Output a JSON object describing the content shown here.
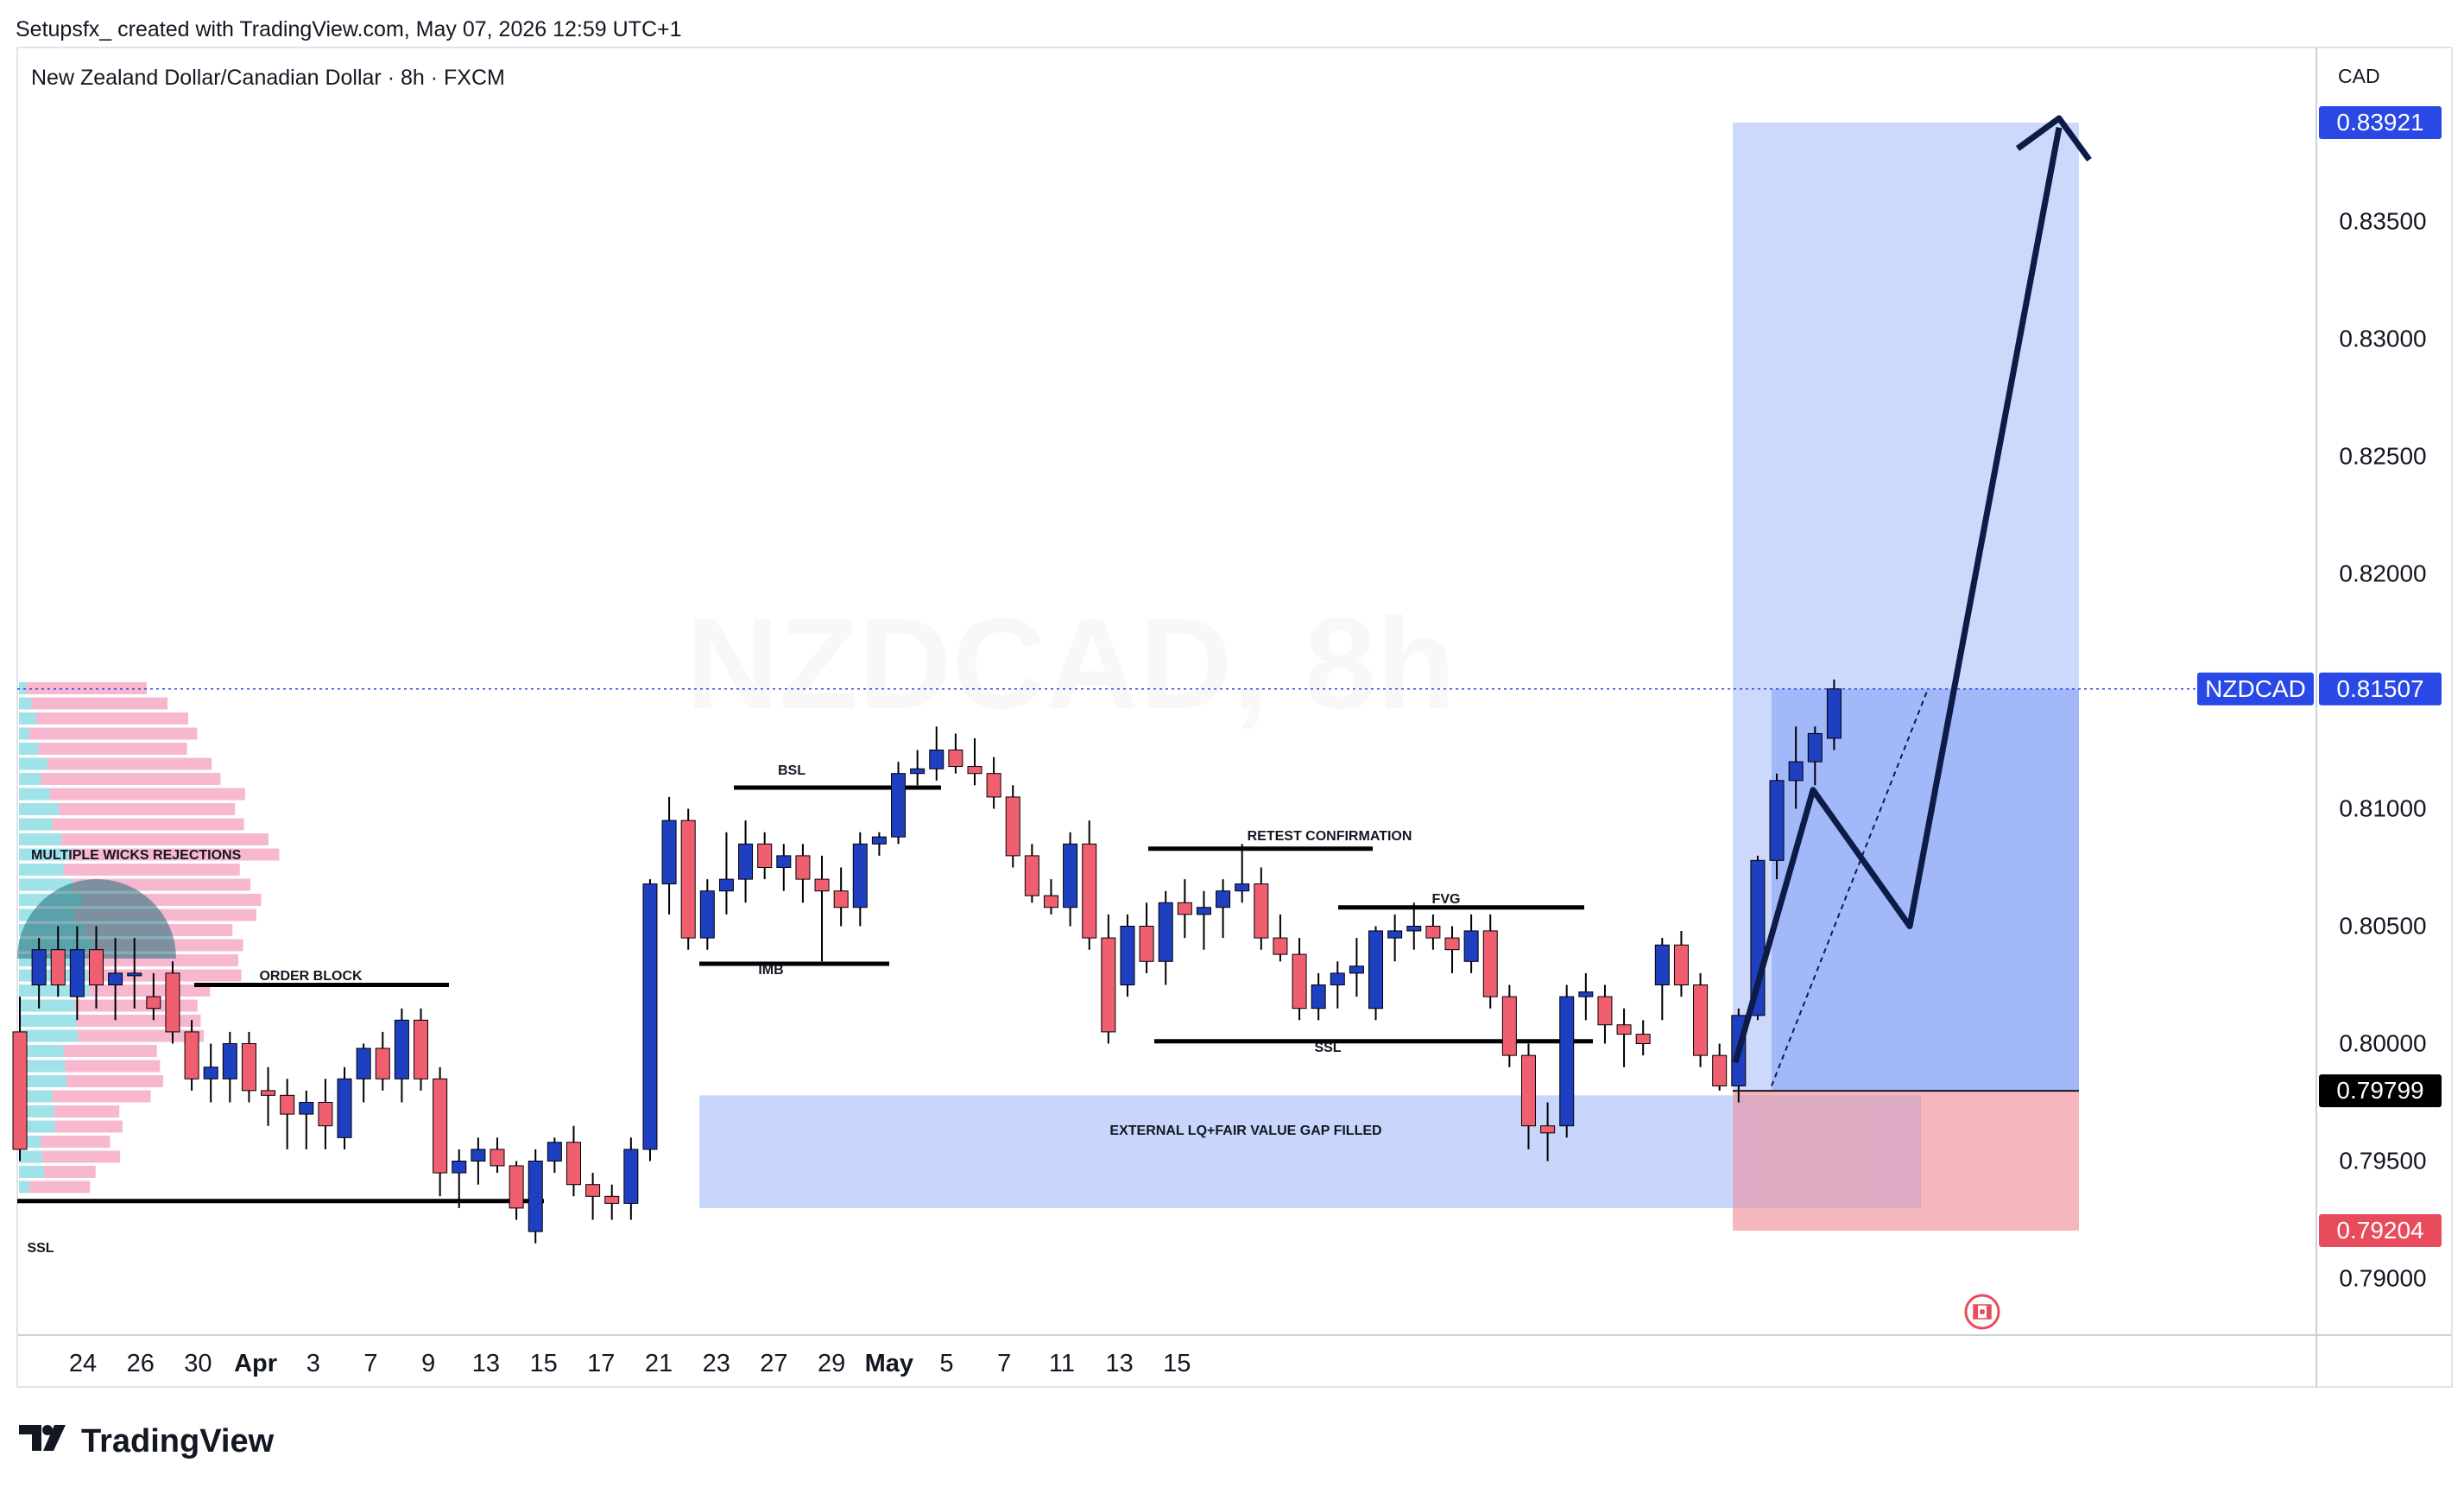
{
  "header": {
    "credit": "Setupsfx_ created with TradingView.com, May 07, 2026 12:59 UTC+1",
    "symbol_line": "New Zealand Dollar/Canadian Dollar · 8h · FXCM",
    "watermark": "NZDCAD, 8h",
    "currency": "CAD"
  },
  "footer": {
    "logo_text": "TradingView"
  },
  "colors": {
    "up": "#1e3fbf",
    "down": "#ef5f70",
    "target_zone": "#c9d7fb",
    "profit_zone": "#9fb6f8",
    "stop_zone": "#f6b3b8",
    "fvg_zone": "#c8d6fb",
    "price_tag": "#2948e6",
    "stop_tag": "#e84c5c",
    "entry_tag": "#000000"
  },
  "chart_data": {
    "type": "candlestick",
    "symbol": "NZDCAD",
    "interval": "8h",
    "y_ticks": [
      "0.79000",
      "0.79500",
      "0.80000",
      "0.80500",
      "0.81000",
      "0.81500",
      "0.82000",
      "0.82500",
      "0.83000",
      "0.83500"
    ],
    "x_ticks": [
      "24",
      "26",
      "30",
      "Apr",
      "3",
      "7",
      "9",
      "13",
      "15",
      "17",
      "21",
      "23",
      "27",
      "29",
      "May",
      "5",
      "7",
      "11",
      "13",
      "15"
    ],
    "price_labels": {
      "target": "0.83921",
      "current_symbol": "NZDCAD",
      "current": "0.81507",
      "entry": "0.79799",
      "stop": "0.79204"
    },
    "ylim": [
      0.7845,
      0.8475
    ],
    "position": {
      "entry": 0.79799,
      "stop": 0.79204,
      "target": 0.83921
    },
    "annotations": [
      {
        "text": "MULTIPLE WICKS REJECTIONS"
      },
      {
        "text": "ORDER BLOCK"
      },
      {
        "text": "SSL"
      },
      {
        "text": "BSL"
      },
      {
        "text": "IMB"
      },
      {
        "text": "RETEST CONFIRMATION"
      },
      {
        "text": "FVG"
      },
      {
        "text": "SSL"
      },
      {
        "text": "EXTERNAL LQ+FAIR VALUE GAP FILLED"
      }
    ],
    "candles": [
      [
        0.8005,
        0.802,
        0.795,
        0.7955
      ],
      [
        0.8025,
        0.8045,
        0.8015,
        0.804
      ],
      [
        0.804,
        0.805,
        0.802,
        0.8025
      ],
      [
        0.802,
        0.805,
        0.801,
        0.804
      ],
      [
        0.804,
        0.805,
        0.8015,
        0.8025
      ],
      [
        0.8025,
        0.8045,
        0.801,
        0.803
      ],
      [
        0.803,
        0.8045,
        0.8015,
        0.803
      ],
      [
        0.802,
        0.803,
        0.801,
        0.8015
      ],
      [
        0.803,
        0.8035,
        0.8,
        0.8005
      ],
      [
        0.8005,
        0.801,
        0.798,
        0.7985
      ],
      [
        0.7985,
        0.8,
        0.7975,
        0.799
      ],
      [
        0.7985,
        0.8005,
        0.7975,
        0.8
      ],
      [
        0.8,
        0.8005,
        0.7975,
        0.798
      ],
      [
        0.798,
        0.799,
        0.7965,
        0.7978
      ],
      [
        0.7978,
        0.7985,
        0.7955,
        0.797
      ],
      [
        0.797,
        0.798,
        0.7955,
        0.7975
      ],
      [
        0.7975,
        0.7985,
        0.7955,
        0.7965
      ],
      [
        0.796,
        0.799,
        0.7955,
        0.7985
      ],
      [
        0.7985,
        0.8,
        0.7975,
        0.7998
      ],
      [
        0.7998,
        0.8005,
        0.798,
        0.7985
      ],
      [
        0.7985,
        0.8015,
        0.7975,
        0.801
      ],
      [
        0.801,
        0.8015,
        0.798,
        0.7985
      ],
      [
        0.7985,
        0.799,
        0.7935,
        0.7945
      ],
      [
        0.7945,
        0.7955,
        0.793,
        0.795
      ],
      [
        0.795,
        0.796,
        0.794,
        0.7955
      ],
      [
        0.7955,
        0.796,
        0.7945,
        0.7948
      ],
      [
        0.7948,
        0.795,
        0.7925,
        0.793
      ],
      [
        0.792,
        0.7955,
        0.7915,
        0.795
      ],
      [
        0.795,
        0.796,
        0.7945,
        0.7958
      ],
      [
        0.7958,
        0.7965,
        0.7935,
        0.794
      ],
      [
        0.794,
        0.7945,
        0.7925,
        0.7935
      ],
      [
        0.7935,
        0.794,
        0.7925,
        0.7932
      ],
      [
        0.7932,
        0.796,
        0.7925,
        0.7955
      ],
      [
        0.7955,
        0.807,
        0.795,
        0.8068
      ],
      [
        0.8068,
        0.8105,
        0.8055,
        0.8095
      ],
      [
        0.8095,
        0.81,
        0.804,
        0.8045
      ],
      [
        0.8045,
        0.807,
        0.804,
        0.8065
      ],
      [
        0.8065,
        0.809,
        0.8055,
        0.807
      ],
      [
        0.807,
        0.8095,
        0.806,
        0.8085
      ],
      [
        0.8085,
        0.809,
        0.807,
        0.8075
      ],
      [
        0.8075,
        0.8085,
        0.8065,
        0.808
      ],
      [
        0.808,
        0.8085,
        0.806,
        0.807
      ],
      [
        0.807,
        0.808,
        0.8035,
        0.8065
      ],
      [
        0.8065,
        0.8075,
        0.805,
        0.8058
      ],
      [
        0.8058,
        0.809,
        0.805,
        0.8085
      ],
      [
        0.8085,
        0.809,
        0.808,
        0.8088
      ],
      [
        0.8088,
        0.812,
        0.8085,
        0.8115
      ],
      [
        0.8115,
        0.8125,
        0.811,
        0.8117
      ],
      [
        0.8117,
        0.8135,
        0.8112,
        0.8125
      ],
      [
        0.8125,
        0.8132,
        0.8115,
        0.8118
      ],
      [
        0.8118,
        0.813,
        0.811,
        0.8115
      ],
      [
        0.8115,
        0.8122,
        0.81,
        0.8105
      ],
      [
        0.8105,
        0.811,
        0.8075,
        0.808
      ],
      [
        0.808,
        0.8085,
        0.806,
        0.8063
      ],
      [
        0.8063,
        0.807,
        0.8055,
        0.8058
      ],
      [
        0.8058,
        0.809,
        0.805,
        0.8085
      ],
      [
        0.8085,
        0.8095,
        0.804,
        0.8045
      ],
      [
        0.8045,
        0.8055,
        0.8,
        0.8005
      ],
      [
        0.8025,
        0.8055,
        0.802,
        0.805
      ],
      [
        0.805,
        0.806,
        0.803,
        0.8035
      ],
      [
        0.8035,
        0.8065,
        0.8025,
        0.806
      ],
      [
        0.806,
        0.807,
        0.8045,
        0.8055
      ],
      [
        0.8055,
        0.8065,
        0.804,
        0.8058
      ],
      [
        0.8058,
        0.807,
        0.8045,
        0.8065
      ],
      [
        0.8065,
        0.8085,
        0.806,
        0.8068
      ],
      [
        0.8068,
        0.8075,
        0.804,
        0.8045
      ],
      [
        0.8045,
        0.8055,
        0.8035,
        0.8038
      ],
      [
        0.8038,
        0.8045,
        0.801,
        0.8015
      ],
      [
        0.8015,
        0.803,
        0.801,
        0.8025
      ],
      [
        0.8025,
        0.8035,
        0.8015,
        0.803
      ],
      [
        0.803,
        0.8045,
        0.802,
        0.8033
      ],
      [
        0.8015,
        0.805,
        0.801,
        0.8048
      ],
      [
        0.8045,
        0.8055,
        0.8035,
        0.8048
      ],
      [
        0.8048,
        0.806,
        0.804,
        0.805
      ],
      [
        0.805,
        0.8055,
        0.804,
        0.8045
      ],
      [
        0.8045,
        0.805,
        0.803,
        0.804
      ],
      [
        0.8035,
        0.8055,
        0.803,
        0.8048
      ],
      [
        0.8048,
        0.8055,
        0.8015,
        0.802
      ],
      [
        0.802,
        0.8025,
        0.799,
        0.7995
      ],
      [
        0.7995,
        0.8,
        0.7955,
        0.7965
      ],
      [
        0.7965,
        0.7975,
        0.795,
        0.7962
      ],
      [
        0.7965,
        0.8025,
        0.796,
        0.802
      ],
      [
        0.802,
        0.803,
        0.801,
        0.8022
      ],
      [
        0.802,
        0.8025,
        0.8,
        0.8008
      ],
      [
        0.8008,
        0.8015,
        0.799,
        0.8004
      ],
      [
        0.8004,
        0.801,
        0.7995,
        0.8
      ],
      [
        0.8025,
        0.8045,
        0.801,
        0.8042
      ],
      [
        0.8042,
        0.8048,
        0.802,
        0.8025
      ],
      [
        0.8025,
        0.803,
        0.799,
        0.7995
      ],
      [
        0.7995,
        0.8,
        0.798,
        0.7982
      ],
      [
        0.7982,
        0.8015,
        0.7975,
        0.8012
      ],
      [
        0.8012,
        0.808,
        0.801,
        0.8078
      ],
      [
        0.8078,
        0.8115,
        0.807,
        0.8112
      ],
      [
        0.8112,
        0.8135,
        0.81,
        0.812
      ],
      [
        0.812,
        0.8135,
        0.811,
        0.8132
      ],
      [
        0.813,
        0.8155,
        0.8125,
        0.8151
      ]
    ]
  }
}
